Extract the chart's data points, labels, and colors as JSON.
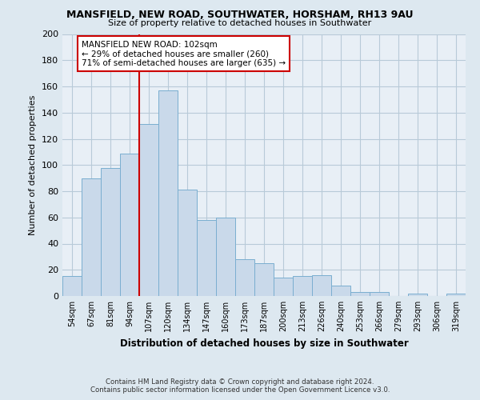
{
  "title": "MANSFIELD, NEW ROAD, SOUTHWATER, HORSHAM, RH13 9AU",
  "subtitle": "Size of property relative to detached houses in Southwater",
  "xlabel": "Distribution of detached houses by size in Southwater",
  "ylabel": "Number of detached properties",
  "categories": [
    "54sqm",
    "67sqm",
    "81sqm",
    "94sqm",
    "107sqm",
    "120sqm",
    "134sqm",
    "147sqm",
    "160sqm",
    "173sqm",
    "187sqm",
    "200sqm",
    "213sqm",
    "226sqm",
    "240sqm",
    "253sqm",
    "266sqm",
    "279sqm",
    "293sqm",
    "306sqm",
    "319sqm"
  ],
  "values": [
    15,
    90,
    98,
    109,
    131,
    157,
    81,
    58,
    60,
    28,
    25,
    14,
    15,
    16,
    8,
    3,
    3,
    0,
    2,
    0,
    2
  ],
  "bar_color": "#c9d9ea",
  "bar_edge_color": "#7aaed0",
  "vline_color": "#cc0000",
  "vline_xindex": 4,
  "annotation_title": "MANSFIELD NEW ROAD: 102sqm",
  "annotation_line1": "← 29% of detached houses are smaller (260)",
  "annotation_line2": "71% of semi-detached houses are larger (635) →",
  "annotation_box_edge": "#cc0000",
  "ylim": [
    0,
    200
  ],
  "yticks": [
    0,
    20,
    40,
    60,
    80,
    100,
    120,
    140,
    160,
    180,
    200
  ],
  "footer_line1": "Contains HM Land Registry data © Crown copyright and database right 2024.",
  "footer_line2": "Contains public sector information licensed under the Open Government Licence v3.0.",
  "bg_color": "#dde8f0",
  "plot_bg_color": "#e8eff6",
  "grid_color": "#b8cad8"
}
